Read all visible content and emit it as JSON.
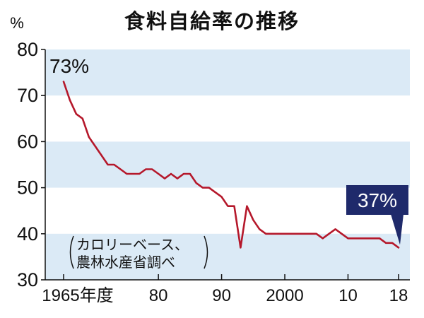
{
  "colors": {
    "band": "#dbeaf6",
    "line": "#b5182b",
    "callout_bg": "#1f2a6b",
    "axis": "#111111"
  },
  "chart_data": {
    "type": "line",
    "title": "食料自給率の推移",
    "ylabel": "%",
    "ylim": [
      30,
      80
    ],
    "xlim": [
      1965,
      2018
    ],
    "yticks": [
      30,
      40,
      50,
      60,
      70,
      80
    ],
    "xticks": [
      {
        "value": 1965,
        "label": "1965",
        "suffix": "年度"
      },
      {
        "value": 1980,
        "label": "80"
      },
      {
        "value": 1990,
        "label": "90"
      },
      {
        "value": 2000,
        "label": "2000"
      },
      {
        "value": 2010,
        "label": "10"
      },
      {
        "value": 2018,
        "label": "18"
      }
    ],
    "series": [
      {
        "x": [
          1965,
          1966,
          1967,
          1968,
          1969,
          1970,
          1971,
          1972,
          1973,
          1974,
          1975,
          1976,
          1977,
          1978,
          1979,
          1980,
          1981,
          1982,
          1983,
          1984,
          1985,
          1986,
          1987,
          1988,
          1989,
          1990,
          1991,
          1992,
          1993,
          1994,
          1995,
          1996,
          1997,
          1998,
          1999,
          2000,
          2001,
          2002,
          2003,
          2004,
          2005,
          2006,
          2007,
          2008,
          2009,
          2010,
          2011,
          2012,
          2013,
          2014,
          2015,
          2016,
          2017,
          2018
        ],
        "values": [
          73,
          69,
          66,
          65,
          61,
          59,
          57,
          55,
          55,
          54,
          53,
          53,
          53,
          54,
          54,
          53,
          52,
          53,
          52,
          53,
          53,
          51,
          50,
          50,
          49,
          48,
          46,
          46,
          37,
          46,
          43,
          41,
          40,
          40,
          40,
          40,
          40,
          40,
          40,
          40,
          40,
          39,
          40,
          41,
          40,
          39,
          39,
          39,
          39,
          39,
          39,
          38,
          38,
          37
        ]
      }
    ],
    "annotations": {
      "start": "73%",
      "end": "37%",
      "note_line1": "カロリーベース、",
      "note_line2": "農林水産省調べ"
    },
    "grid": "alternating horizontal bands"
  }
}
